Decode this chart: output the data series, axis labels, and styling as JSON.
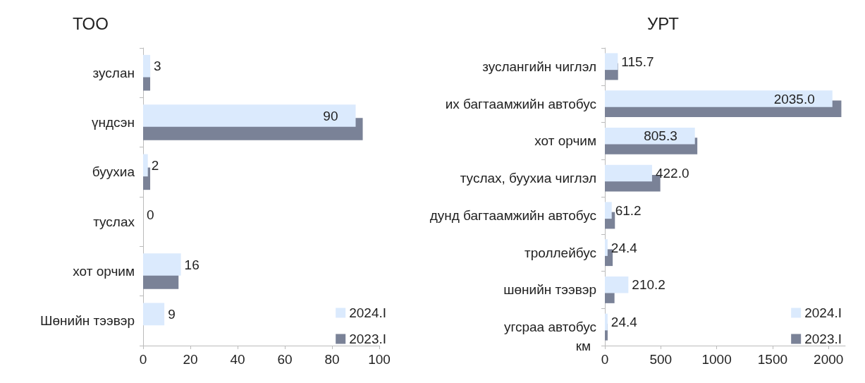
{
  "chart_data": [
    {
      "type": "bar",
      "orientation": "horizontal",
      "title": "ТОО",
      "categories": [
        "зуслан",
        "үндсэн",
        "буухиа",
        "туслах",
        "хот орчим",
        "Шөнийн тээвэр"
      ],
      "series": [
        {
          "name": "2024.I",
          "color": "#dbeafd",
          "values": [
            3,
            90,
            2,
            0,
            16,
            9
          ],
          "value_labels": [
            "3",
            "90",
            "2",
            "0",
            "16",
            "9"
          ]
        },
        {
          "name": "2023.I",
          "color": "#7a8297",
          "values": [
            3,
            93,
            3,
            0,
            15,
            0
          ]
        }
      ],
      "xlim": [
        0,
        100
      ],
      "xticks": [
        0,
        20,
        40,
        60,
        80,
        100
      ],
      "grid": false,
      "legend": "bottom right"
    },
    {
      "type": "bar",
      "orientation": "horizontal",
      "title": "УРТ",
      "xlabel": "км",
      "categories": [
        "зуслангийн чиглэл",
        "их багтаамжийн автобус",
        "хот орчим",
        "туслах, буухиа чиглэл",
        "дунд багтаамжийн автобус",
        "троллейбус",
        "шөнийн тээвэр",
        "угсраа автобус"
      ],
      "series": [
        {
          "name": "2024.I",
          "color": "#dbeafd",
          "values": [
            115.7,
            2035.0,
            805.3,
            422.0,
            61.2,
            24.4,
            210.2,
            24.4
          ],
          "value_labels": [
            "115.7",
            "2035.0",
            "805.3",
            "422.0",
            "61.2",
            "24.4",
            "210.2",
            "24.4"
          ]
        },
        {
          "name": "2023.I",
          "color": "#7a8297",
          "values": [
            118,
            2115,
            827,
            496,
            90,
            70,
            86,
            25
          ]
        }
      ],
      "xlim": [
        0,
        2150
      ],
      "xticks": [
        0,
        500,
        1000,
        1500,
        2000
      ],
      "grid": false,
      "legend": "bottom right"
    }
  ]
}
